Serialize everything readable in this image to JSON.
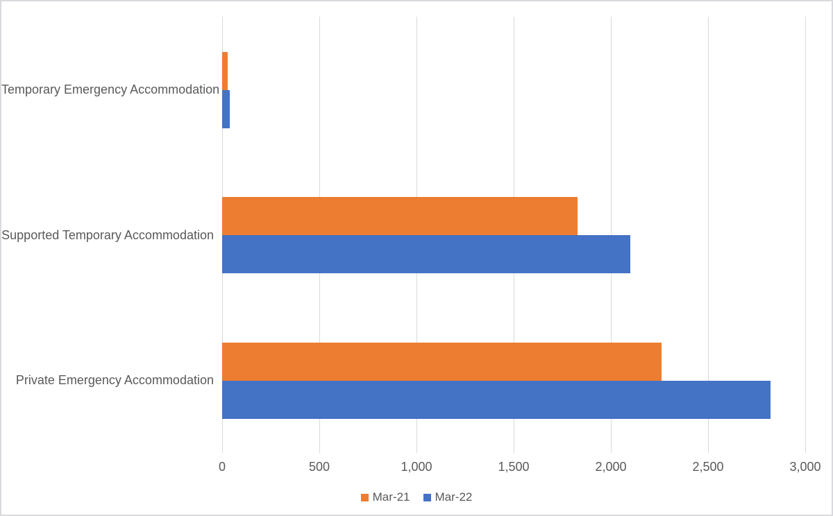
{
  "chart_data": {
    "type": "bar",
    "orientation": "horizontal",
    "categories": [
      "Temporary Emergency Accommodation",
      "Supported Temporary Accommodation",
      "Private Emergency Accommodation"
    ],
    "category_order": "top-to-bottom",
    "series": [
      {
        "name": "Mar-21",
        "color": "#ED7D31",
        "values": [
          30,
          1830,
          2260
        ]
      },
      {
        "name": "Mar-22",
        "color": "#4472C4",
        "values": [
          38,
          2100,
          2820
        ]
      }
    ],
    "xlim": [
      0,
      3000
    ],
    "x_ticks": [
      {
        "value": 0,
        "label": "0"
      },
      {
        "value": 500,
        "label": "500"
      },
      {
        "value": 1000,
        "label": "1,000"
      },
      {
        "value": 1500,
        "label": "1,500"
      },
      {
        "value": 2000,
        "label": "2,000"
      },
      {
        "value": 2500,
        "label": "2,500"
      },
      {
        "value": 3000,
        "label": "3,000"
      }
    ],
    "title": "",
    "xlabel": "",
    "ylabel": "",
    "grid": "vertical",
    "legend_position": "bottom",
    "colors": {
      "gridline": "#D9D9D9",
      "axis_text": "#595959",
      "category_text": "#595959",
      "chart_border": "#D9D9DE"
    }
  }
}
